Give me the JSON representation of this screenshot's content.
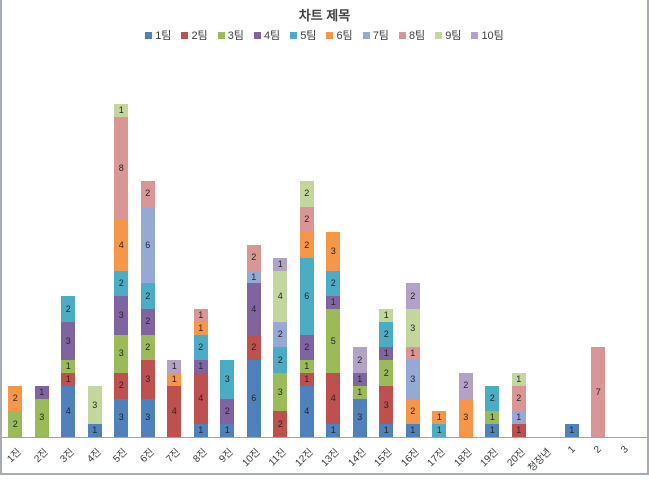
{
  "chart_data": {
    "type": "bar",
    "stacked": true,
    "title": "차트 제목",
    "legend_position": "top",
    "y_axis": {
      "visible": false,
      "gridlines": false
    },
    "x_labels_rotation_deg": -45,
    "categories": [
      "1진",
      "2진",
      "3진",
      "4진",
      "5진",
      "6진",
      "7진",
      "8진",
      "9진",
      "10진",
      "11진",
      "12진",
      "13진",
      "14진",
      "15진",
      "16진",
      "17진",
      "18진",
      "19진",
      "20진",
      "청장년",
      "1",
      "2",
      "3"
    ],
    "series": [
      {
        "name": "1팀",
        "color": "#4F81BD",
        "values": [
          0,
          0,
          4,
          1,
          3,
          3,
          0,
          1,
          1,
          6,
          0,
          4,
          1,
          3,
          1,
          1,
          0,
          0,
          1,
          0,
          0,
          1,
          0,
          0
        ]
      },
      {
        "name": "2팀",
        "color": "#C0504D",
        "values": [
          0,
          0,
          1,
          0,
          2,
          3,
          4,
          4,
          0,
          2,
          2,
          1,
          4,
          0,
          3,
          0,
          0,
          0,
          0,
          1,
          0,
          0,
          0,
          0
        ]
      },
      {
        "name": "3팀",
        "color": "#9BBB59",
        "values": [
          2,
          3,
          1,
          0,
          3,
          2,
          0,
          0,
          0,
          0,
          3,
          1,
          5,
          1,
          2,
          0,
          0,
          0,
          1,
          0,
          0,
          0,
          0,
          0
        ]
      },
      {
        "name": "4팀",
        "color": "#8064A2",
        "values": [
          0,
          1,
          3,
          0,
          3,
          2,
          0,
          1,
          2,
          4,
          0,
          2,
          1,
          1,
          1,
          0,
          0,
          0,
          0,
          0,
          0,
          0,
          0,
          0
        ]
      },
      {
        "name": "5팀",
        "color": "#4BACC6",
        "values": [
          0,
          0,
          2,
          0,
          2,
          2,
          0,
          2,
          3,
          0,
          2,
          6,
          2,
          0,
          2,
          0,
          1,
          0,
          2,
          0,
          0,
          0,
          0,
          0
        ]
      },
      {
        "name": "6팀",
        "color": "#F79646",
        "values": [
          2,
          0,
          0,
          0,
          4,
          0,
          1,
          1,
          0,
          0,
          0,
          2,
          3,
          0,
          0,
          2,
          1,
          3,
          0,
          0,
          0,
          0,
          0,
          0
        ]
      },
      {
        "name": "7팀",
        "color": "#95A9D6",
        "values": [
          0,
          0,
          0,
          0,
          0,
          6,
          0,
          0,
          0,
          1,
          2,
          0,
          0,
          0,
          0,
          3,
          0,
          0,
          0,
          1,
          0,
          0,
          0,
          0
        ]
      },
      {
        "name": "8팀",
        "color": "#D99694",
        "values": [
          0,
          0,
          0,
          0,
          8,
          2,
          0,
          1,
          0,
          2,
          0,
          2,
          0,
          0,
          0,
          1,
          0,
          0,
          0,
          2,
          0,
          0,
          7,
          0
        ]
      },
      {
        "name": "9팀",
        "color": "#C3D69B",
        "values": [
          0,
          0,
          0,
          3,
          1,
          0,
          0,
          0,
          0,
          0,
          4,
          2,
          0,
          0,
          1,
          3,
          0,
          0,
          0,
          1,
          0,
          0,
          0,
          0
        ]
      },
      {
        "name": "10팀",
        "color": "#B3A2C7",
        "values": [
          0,
          0,
          0,
          0,
          0,
          0,
          1,
          0,
          0,
          0,
          1,
          0,
          0,
          2,
          0,
          2,
          0,
          2,
          0,
          0,
          0,
          0,
          0,
          0
        ]
      }
    ]
  },
  "frame": {
    "border_color": "#A6ACB5",
    "axis_color": "#9EA4AB"
  }
}
